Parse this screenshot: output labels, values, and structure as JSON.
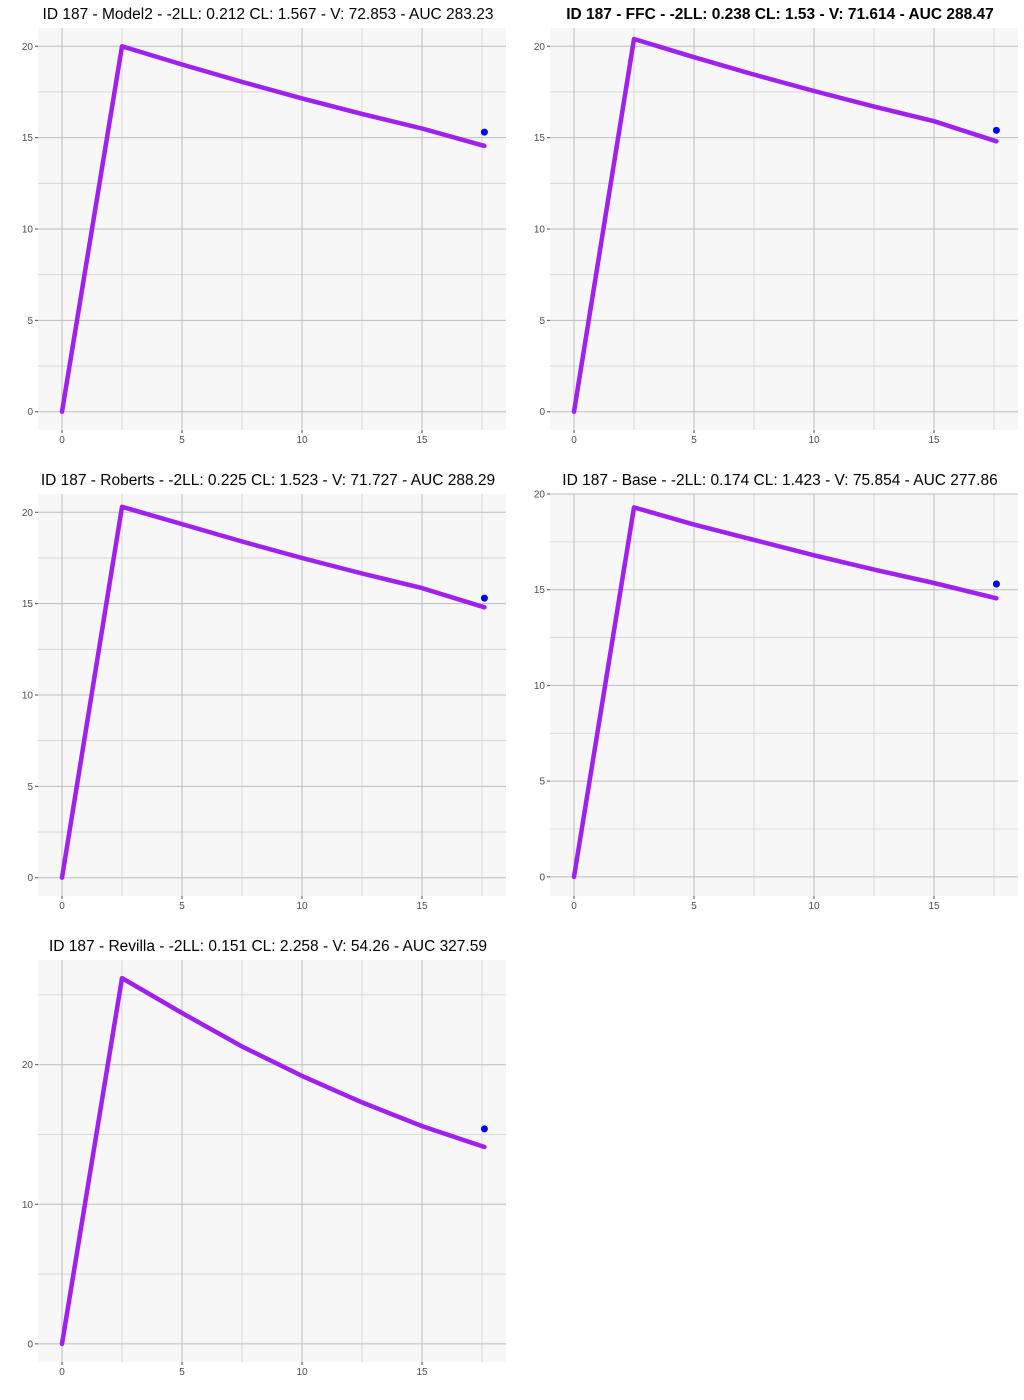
{
  "colors": {
    "curve": "#a020f0",
    "observation": "#0000ff",
    "panel_background": "#f7f7f7",
    "grid": "#bdbdbd"
  },
  "chart_data": [
    {
      "type": "line",
      "title": "ID 187 - Model2 - -2LL: 0.212 CL: 1.567 - V: 72.853 - AUC 283.23",
      "title_bold": false,
      "xlim": [
        -1,
        18.5
      ],
      "ylim": [
        -1,
        21
      ],
      "xticks": [
        0,
        5,
        10,
        15
      ],
      "yticks": [
        0,
        5,
        10,
        15,
        20
      ],
      "grid": true,
      "series": [
        {
          "kind": "line",
          "x": [
            0,
            2.5,
            5,
            7.5,
            10,
            12.5,
            15,
            17.6
          ],
          "y": [
            0,
            20.0,
            19.0,
            18.05,
            17.15,
            16.3,
            15.5,
            14.55
          ]
        },
        {
          "kind": "points",
          "x": [
            17.6
          ],
          "y": [
            15.3
          ]
        }
      ]
    },
    {
      "type": "line",
      "title": "ID 187 - FFC - -2LL: 0.238 CL: 1.53 - V: 71.614 - AUC 288.47",
      "title_bold": true,
      "xlim": [
        -1,
        18.5
      ],
      "ylim": [
        -1,
        21
      ],
      "xticks": [
        0,
        5,
        10,
        15
      ],
      "yticks": [
        0,
        5,
        10,
        15,
        20
      ],
      "grid": true,
      "series": [
        {
          "kind": "line",
          "x": [
            0,
            2.5,
            5,
            7.5,
            10,
            12.5,
            15,
            17.6
          ],
          "y": [
            0,
            20.4,
            19.4,
            18.45,
            17.55,
            16.7,
            15.9,
            14.8
          ]
        },
        {
          "kind": "points",
          "x": [
            17.6
          ],
          "y": [
            15.4
          ]
        }
      ]
    },
    {
      "type": "line",
      "title": "ID 187 - Roberts - -2LL: 0.225 CL: 1.523 - V: 71.727 - AUC 288.29",
      "title_bold": false,
      "xlim": [
        -1,
        18.5
      ],
      "ylim": [
        -1,
        21
      ],
      "xticks": [
        0,
        5,
        10,
        15
      ],
      "yticks": [
        0,
        5,
        10,
        15,
        20
      ],
      "grid": true,
      "series": [
        {
          "kind": "line",
          "x": [
            0,
            2.5,
            5,
            7.5,
            10,
            12.5,
            15,
            17.6
          ],
          "y": [
            0,
            20.3,
            19.35,
            18.4,
            17.5,
            16.65,
            15.85,
            14.8
          ]
        },
        {
          "kind": "points",
          "x": [
            17.6
          ],
          "y": [
            15.3
          ]
        }
      ]
    },
    {
      "type": "line",
      "title": "ID 187 - Base - -2LL: 0.174 CL: 1.423 - V: 75.854 - AUC 277.86",
      "title_bold": false,
      "xlim": [
        -1,
        18.5
      ],
      "ylim": [
        -1,
        20
      ],
      "xticks": [
        0,
        5,
        10,
        15
      ],
      "yticks": [
        0,
        5,
        10,
        15,
        20
      ],
      "grid": true,
      "series": [
        {
          "kind": "line",
          "x": [
            0,
            2.5,
            5,
            7.5,
            10,
            12.5,
            15,
            17.6
          ],
          "y": [
            0,
            19.3,
            18.4,
            17.6,
            16.8,
            16.05,
            15.35,
            14.55
          ]
        },
        {
          "kind": "points",
          "x": [
            17.6
          ],
          "y": [
            15.3
          ]
        }
      ]
    },
    {
      "type": "line",
      "title": "ID 187 - Revilla - -2LL: 0.151 CL: 2.258 - V: 54.26 - AUC 327.59",
      "title_bold": false,
      "xlim": [
        -1,
        18.5
      ],
      "ylim": [
        -1.3,
        27.5
      ],
      "xticks": [
        0,
        5,
        10,
        15
      ],
      "yticks": [
        0,
        10,
        20
      ],
      "grid": true,
      "series": [
        {
          "kind": "line",
          "x": [
            0,
            2.5,
            5,
            7.5,
            10,
            12.5,
            15,
            17.6
          ],
          "y": [
            0,
            26.2,
            23.7,
            21.3,
            19.2,
            17.3,
            15.6,
            14.1
          ]
        },
        {
          "kind": "points",
          "x": [
            17.6
          ],
          "y": [
            15.4
          ]
        }
      ]
    }
  ]
}
